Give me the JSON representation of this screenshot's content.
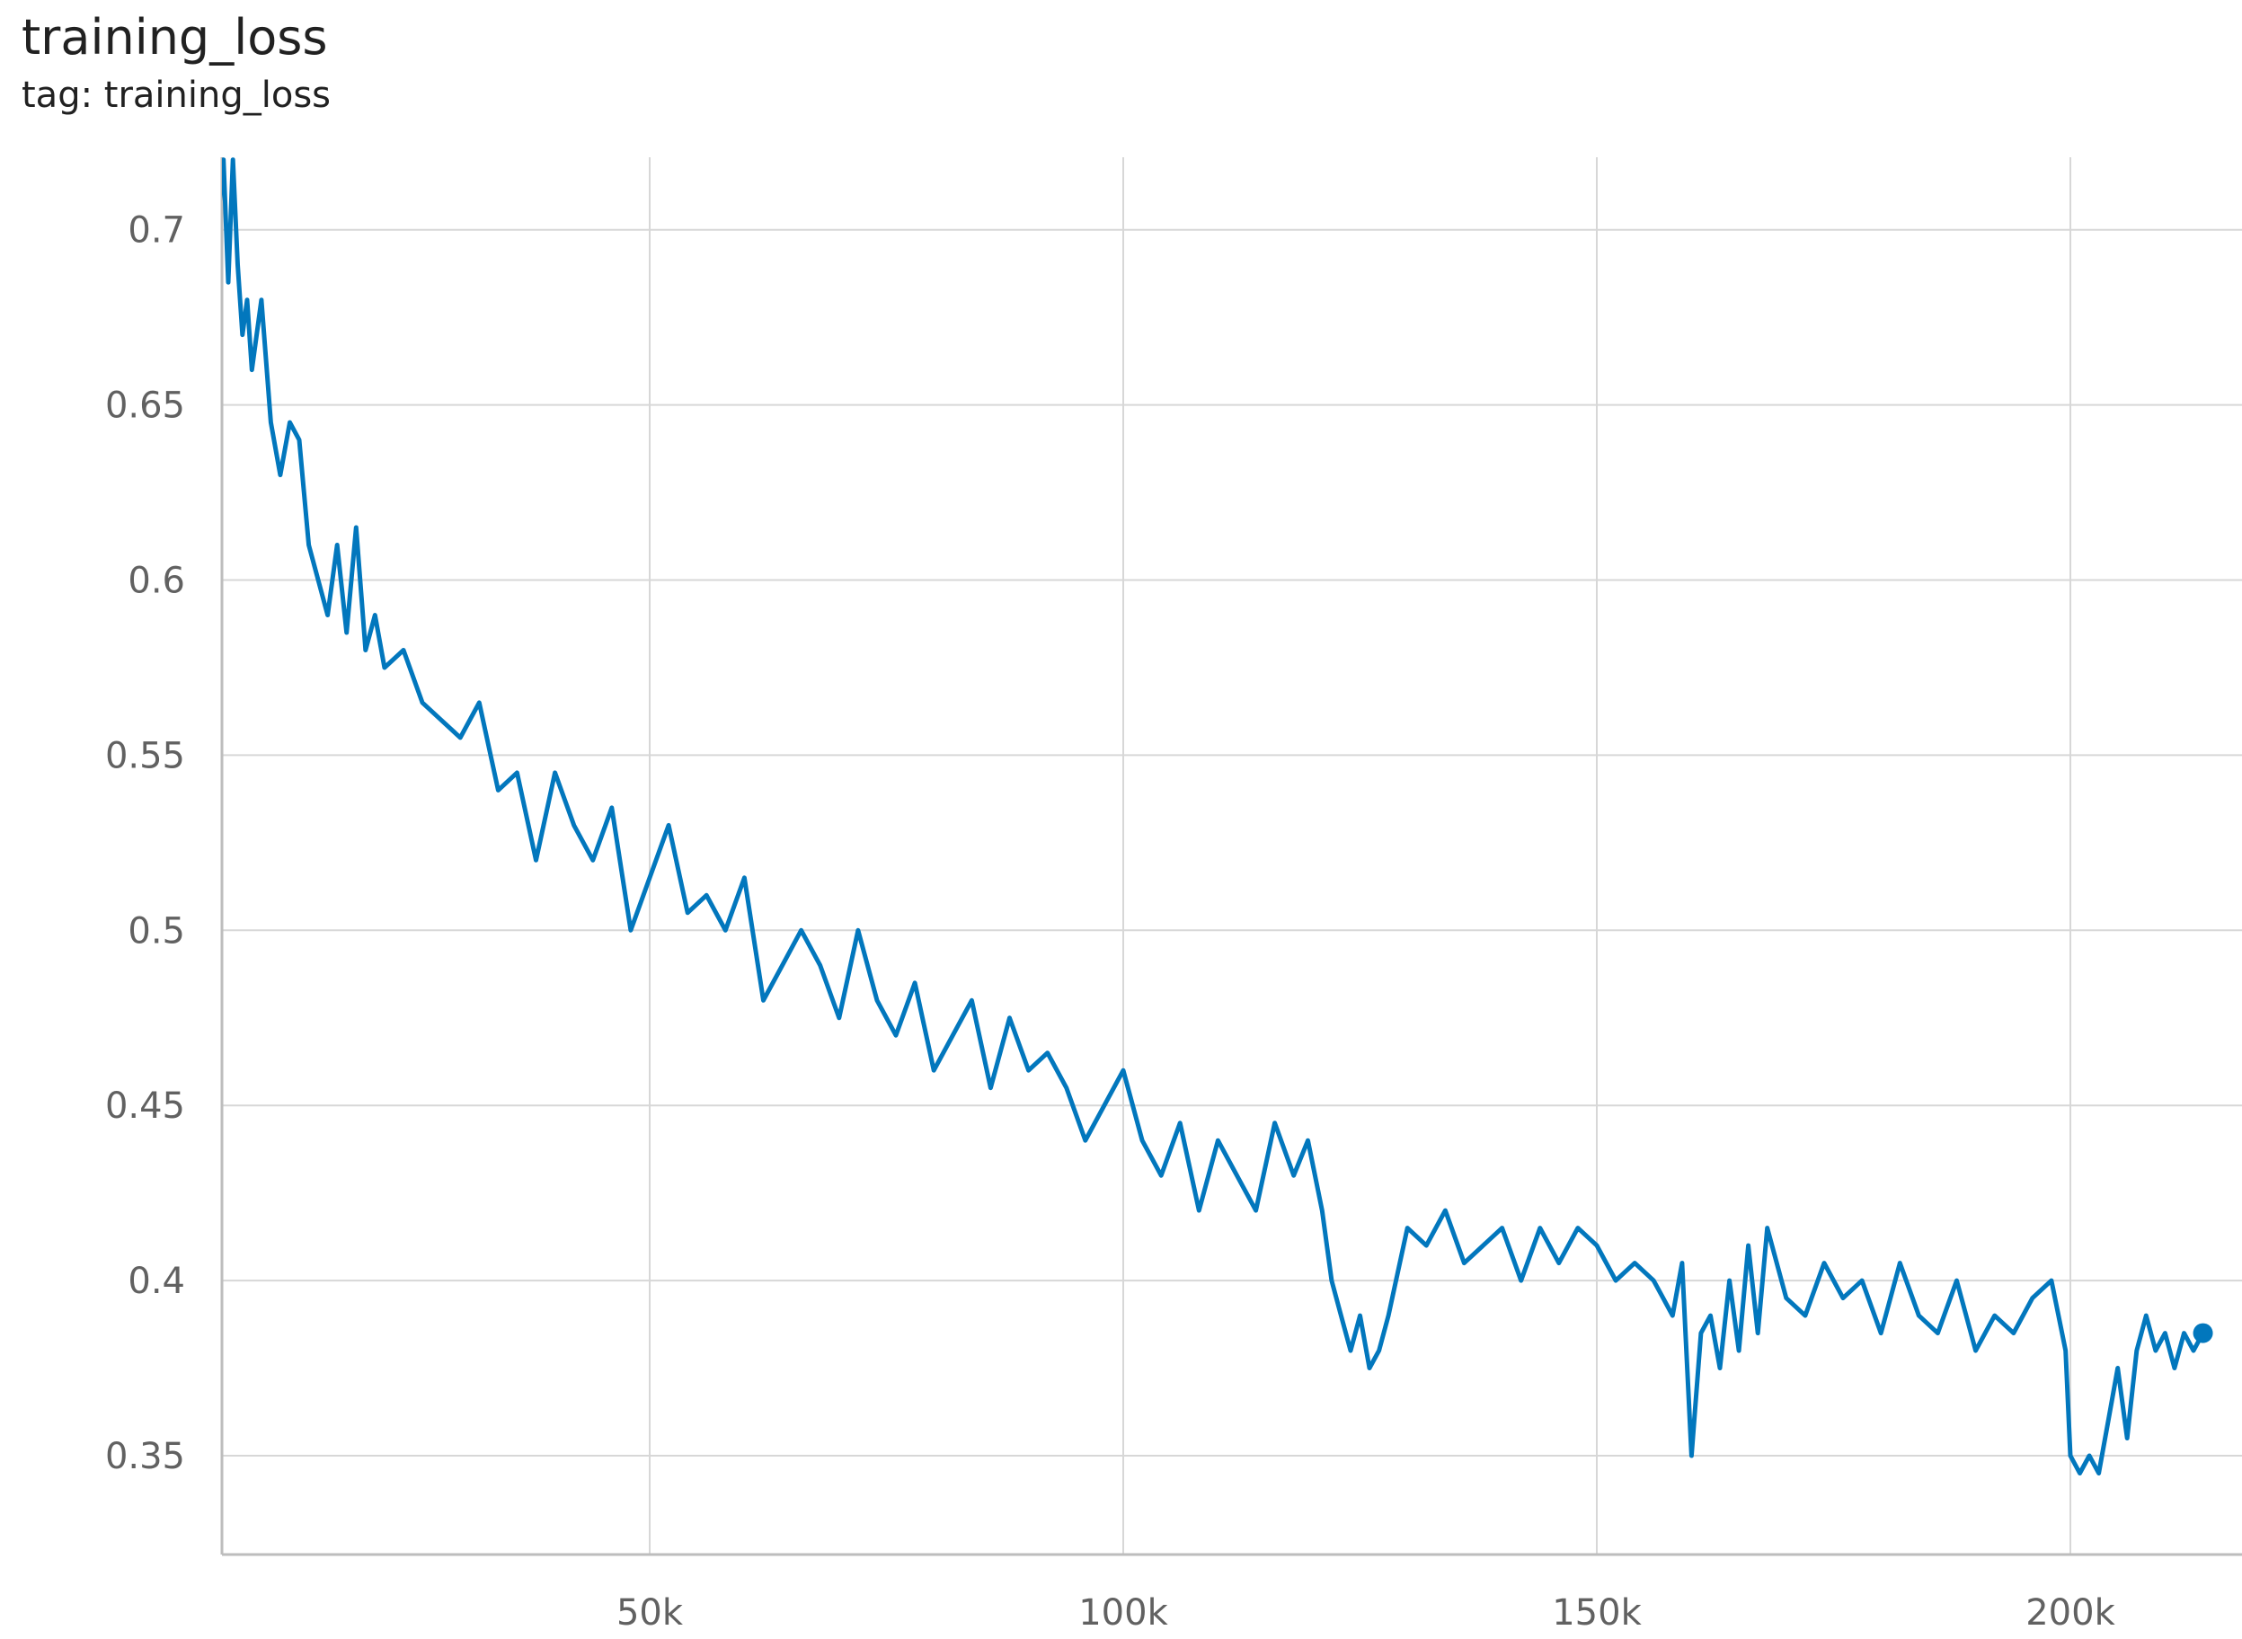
{
  "card": {
    "title": "training_loss",
    "subtitle": "tag: training_loss"
  },
  "colors": {
    "series": "#0277bd",
    "grid": "#d7d7d7",
    "axis": "#bdbdbd",
    "tick_text": "#616161"
  },
  "chart_data": {
    "type": "line",
    "title": "training_loss",
    "subtitle": "tag: training_loss",
    "xlabel": "",
    "ylabel": "",
    "xlim": [
      0,
      215000
    ],
    "ylim": [
      0.33,
      0.72
    ],
    "x_ticks": [
      50000,
      100000,
      150000,
      200000
    ],
    "x_tick_labels": [
      "50k",
      "100k",
      "150k",
      "200k"
    ],
    "y_ticks": [
      0.35,
      0.4,
      0.45,
      0.5,
      0.55,
      0.6,
      0.65,
      0.7
    ],
    "y_tick_labels": [
      "0.35",
      "0.4",
      "0.45",
      "0.5",
      "0.55",
      "0.6",
      "0.65",
      "0.7"
    ],
    "grid": true,
    "legend": "none",
    "series": [
      {
        "x": [
          4000,
          4500,
          5000,
          5500,
          6000,
          6500,
          7000,
          7500,
          8000,
          9000,
          10000,
          11000,
          12000,
          13000,
          14000,
          15000,
          16000,
          17000,
          18000,
          19000,
          20000,
          21000,
          22000,
          24000,
          26000,
          28000,
          30000,
          32000,
          34000,
          36000,
          38000,
          40000,
          42000,
          44000,
          46000,
          48000,
          50000,
          52000,
          54000,
          56000,
          58000,
          60000,
          62000,
          64000,
          66000,
          68000,
          70000,
          72000,
          74000,
          76000,
          78000,
          80000,
          82000,
          84000,
          86000,
          88000,
          90000,
          92000,
          94000,
          96000,
          98000,
          100000,
          102000,
          104000,
          106000,
          108000,
          110000,
          112000,
          114000,
          116000,
          118000,
          119500,
          121000,
          122000,
          123000,
          124000,
          125000,
          126000,
          127000,
          128000,
          130000,
          132000,
          134000,
          136000,
          138000,
          140000,
          142000,
          144000,
          146000,
          148000,
          150000,
          152000,
          154000,
          156000,
          157000,
          158000,
          159000,
          160000,
          161000,
          162000,
          163000,
          164000,
          165000,
          166000,
          167000,
          168000,
          170000,
          172000,
          174000,
          176000,
          178000,
          180000,
          182000,
          184000,
          186000,
          188000,
          190000,
          192000,
          194000,
          196000,
          198000,
          199500,
          200000,
          201000,
          202000,
          203000,
          204000,
          205000,
          206000,
          207000,
          208000,
          209000,
          210000,
          211000,
          212000,
          213000,
          214000
        ],
        "y": [
          0.72,
          0.705,
          0.72,
          0.685,
          0.72,
          0.69,
          0.67,
          0.68,
          0.66,
          0.68,
          0.645,
          0.63,
          0.645,
          0.64,
          0.61,
          0.6,
          0.59,
          0.61,
          0.585,
          0.615,
          0.58,
          0.59,
          0.575,
          0.58,
          0.565,
          0.56,
          0.555,
          0.565,
          0.54,
          0.545,
          0.52,
          0.545,
          0.53,
          0.52,
          0.535,
          0.5,
          0.515,
          0.53,
          0.505,
          0.51,
          0.5,
          0.515,
          0.48,
          0.49,
          0.5,
          0.49,
          0.475,
          0.5,
          0.48,
          0.47,
          0.485,
          0.46,
          0.47,
          0.48,
          0.455,
          0.475,
          0.46,
          0.465,
          0.455,
          0.44,
          0.45,
          0.46,
          0.44,
          0.43,
          0.445,
          0.42,
          0.44,
          0.43,
          0.42,
          0.445,
          0.43,
          0.44,
          0.42,
          0.4,
          0.39,
          0.38,
          0.39,
          0.375,
          0.38,
          0.39,
          0.415,
          0.41,
          0.42,
          0.405,
          0.41,
          0.415,
          0.4,
          0.415,
          0.405,
          0.415,
          0.41,
          0.4,
          0.405,
          0.4,
          0.395,
          0.39,
          0.405,
          0.35,
          0.385,
          0.39,
          0.375,
          0.4,
          0.38,
          0.41,
          0.385,
          0.415,
          0.395,
          0.39,
          0.405,
          0.395,
          0.4,
          0.385,
          0.405,
          0.39,
          0.385,
          0.4,
          0.38,
          0.39,
          0.385,
          0.395,
          0.4,
          0.38,
          0.35,
          0.345,
          0.35,
          0.345,
          0.36,
          0.375,
          0.355,
          0.38,
          0.39,
          0.38,
          0.385,
          0.375,
          0.385,
          0.38,
          0.385
        ]
      }
    ]
  }
}
